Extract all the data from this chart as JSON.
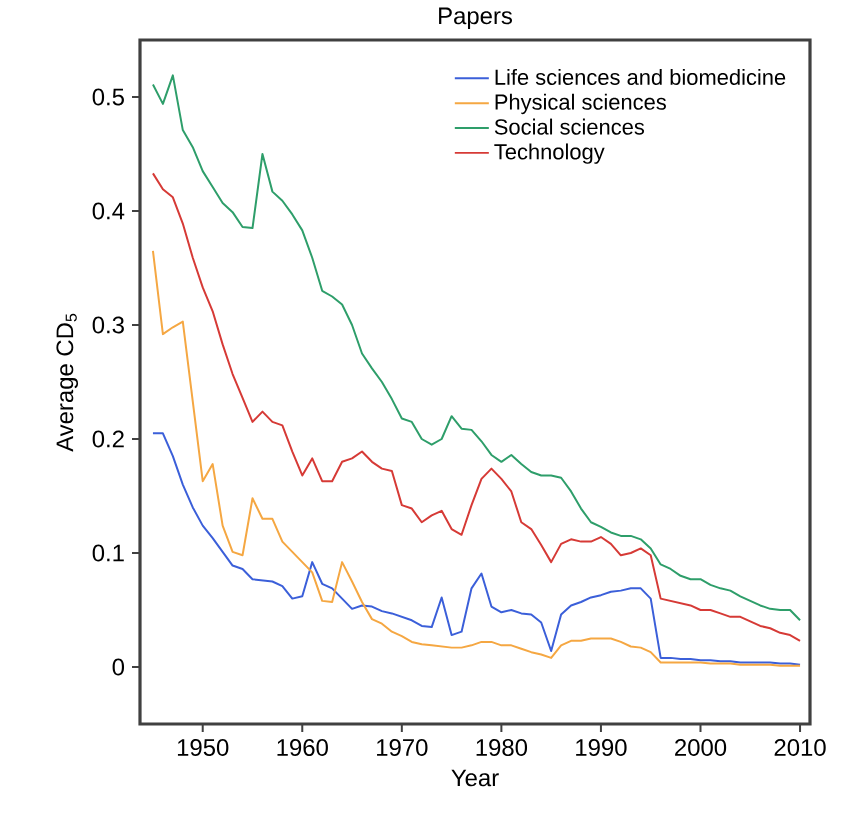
{
  "chart_data": {
    "type": "line",
    "title": "Papers",
    "xlabel": "Year",
    "ylabel": "Average CD$_{5}$",
    "x": [
      1945,
      1946,
      1947,
      1948,
      1949,
      1950,
      1951,
      1952,
      1953,
      1954,
      1955,
      1956,
      1957,
      1958,
      1959,
      1960,
      1961,
      1962,
      1963,
      1964,
      1965,
      1966,
      1967,
      1968,
      1969,
      1970,
      1971,
      1972,
      1973,
      1974,
      1975,
      1976,
      1977,
      1978,
      1979,
      1980,
      1981,
      1982,
      1983,
      1984,
      1985,
      1986,
      1987,
      1988,
      1989,
      1990,
      1991,
      1992,
      1993,
      1994,
      1995,
      1996,
      1997,
      1998,
      1999,
      2000,
      2001,
      2002,
      2003,
      2004,
      2005,
      2006,
      2007,
      2008,
      2009,
      2010
    ],
    "series": [
      {
        "name": "Life sciences and biomedicine",
        "color": "#3b5fd9",
        "values": [
          0.205,
          0.205,
          0.185,
          0.16,
          0.14,
          0.124,
          0.113,
          0.101,
          0.089,
          0.086,
          0.077,
          0.076,
          0.075,
          0.071,
          0.06,
          0.062,
          0.092,
          0.073,
          0.069,
          0.06,
          0.051,
          0.054,
          0.053,
          0.049,
          0.047,
          0.044,
          0.041,
          0.036,
          0.035,
          0.061,
          0.028,
          0.031,
          0.069,
          0.082,
          0.053,
          0.048,
          0.05,
          0.047,
          0.046,
          0.039,
          0.014,
          0.046,
          0.054,
          0.057,
          0.061,
          0.063,
          0.066,
          0.067,
          0.069,
          0.069,
          0.06,
          0.008,
          0.008,
          0.007,
          0.007,
          0.006,
          0.006,
          0.005,
          0.005,
          0.004,
          0.004,
          0.004,
          0.004,
          0.003,
          0.003,
          0.002
        ]
      },
      {
        "name": "Physical sciences",
        "color": "#f5a742",
        "values": [
          0.365,
          0.292,
          0.298,
          0.303,
          0.233,
          0.163,
          0.178,
          0.124,
          0.101,
          0.098,
          0.148,
          0.13,
          0.13,
          0.11,
          0.101,
          0.092,
          0.083,
          0.058,
          0.057,
          0.092,
          0.075,
          0.057,
          0.042,
          0.038,
          0.031,
          0.027,
          0.022,
          0.02,
          0.019,
          0.018,
          0.017,
          0.017,
          0.019,
          0.022,
          0.022,
          0.019,
          0.019,
          0.016,
          0.013,
          0.011,
          0.008,
          0.019,
          0.023,
          0.023,
          0.025,
          0.025,
          0.025,
          0.022,
          0.018,
          0.017,
          0.013,
          0.004,
          0.004,
          0.004,
          0.004,
          0.004,
          0.003,
          0.003,
          0.003,
          0.002,
          0.002,
          0.002,
          0.002,
          0.001,
          0.001,
          0.001
        ]
      },
      {
        "name": "Social sciences",
        "color": "#2e9e6a",
        "values": [
          0.511,
          0.494,
          0.519,
          0.471,
          0.456,
          0.435,
          0.421,
          0.407,
          0.399,
          0.386,
          0.385,
          0.45,
          0.417,
          0.409,
          0.397,
          0.383,
          0.359,
          0.33,
          0.325,
          0.318,
          0.3,
          0.275,
          0.262,
          0.25,
          0.235,
          0.218,
          0.215,
          0.2,
          0.195,
          0.2,
          0.22,
          0.209,
          0.208,
          0.198,
          0.186,
          0.18,
          0.186,
          0.178,
          0.171,
          0.168,
          0.168,
          0.166,
          0.154,
          0.139,
          0.127,
          0.123,
          0.118,
          0.115,
          0.115,
          0.112,
          0.104,
          0.09,
          0.086,
          0.08,
          0.077,
          0.077,
          0.072,
          0.069,
          0.067,
          0.062,
          0.058,
          0.054,
          0.051,
          0.05,
          0.05,
          0.041
        ]
      },
      {
        "name": "Technology",
        "color": "#d63a36",
        "values": [
          0.433,
          0.419,
          0.412,
          0.389,
          0.359,
          0.333,
          0.312,
          0.283,
          0.257,
          0.236,
          0.215,
          0.224,
          0.215,
          0.212,
          0.189,
          0.168,
          0.183,
          0.163,
          0.163,
          0.18,
          0.183,
          0.189,
          0.18,
          0.174,
          0.172,
          0.142,
          0.139,
          0.127,
          0.133,
          0.137,
          0.121,
          0.116,
          0.142,
          0.165,
          0.174,
          0.165,
          0.154,
          0.127,
          0.121,
          0.107,
          0.092,
          0.108,
          0.112,
          0.11,
          0.11,
          0.114,
          0.108,
          0.098,
          0.1,
          0.104,
          0.098,
          0.06,
          0.058,
          0.056,
          0.054,
          0.05,
          0.05,
          0.047,
          0.044,
          0.044,
          0.04,
          0.036,
          0.034,
          0.03,
          0.028,
          0.023
        ]
      }
    ],
    "xlim": [
      1943.7,
      2011
    ],
    "ylim": [
      -0.05,
      0.55
    ],
    "xticks": [
      1950,
      1960,
      1970,
      1980,
      1990,
      2000,
      2010
    ],
    "yticks": [
      0,
      0.1,
      0.2,
      0.3,
      0.4,
      0.5
    ],
    "legend": "top right"
  }
}
